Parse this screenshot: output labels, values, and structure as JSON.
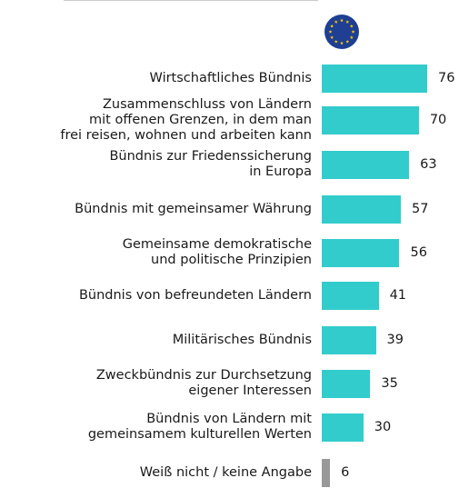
{
  "chart_data": {
    "type": "bar",
    "orientation": "horizontal",
    "categories": [
      [
        "Wirtschaftliches Bündnis"
      ],
      [
        "Zusammenschluss von Ländern",
        "mit offenen Grenzen, in dem man",
        "frei reisen, wohnen und arbeiten kann"
      ],
      [
        "Bündnis zur Friedenssicherung",
        "in Europa"
      ],
      [
        "Bündnis mit gemeinsamer Währung"
      ],
      [
        "Gemeinsame demokratische",
        "und politische Prinzipien"
      ],
      [
        "Bündnis von befreundeten Ländern"
      ],
      [
        "Militärisches Bündnis"
      ],
      [
        "Zweckbündnis zur Durchsetzung",
        "eigener Interessen"
      ],
      [
        "Bündnis von Ländern mit",
        "gemeinsamem kulturellen Werten"
      ],
      [
        "Weiß nicht / keine Angabe"
      ]
    ],
    "values": [
      76,
      70,
      63,
      57,
      56,
      41,
      39,
      35,
      30,
      6
    ],
    "value_labels": [
      "76",
      "70",
      "63",
      "57",
      "56",
      "41",
      "39",
      "35",
      "30",
      "6"
    ],
    "bar_colors": [
      "#33cccc",
      "#33cccc",
      "#33cccc",
      "#33cccc",
      "#33cccc",
      "#33cccc",
      "#33cccc",
      "#33cccc",
      "#33cccc",
      "#999999"
    ],
    "xlim": [
      0,
      100
    ],
    "title": "",
    "xlabel": "",
    "ylabel": "",
    "grid": false,
    "legend": "none"
  },
  "header": {
    "flag_icon": "eu-flag-icon",
    "flag_colors": {
      "background": "#1f3f93",
      "stars": "#ffcc00"
    }
  },
  "colors": {
    "text": "#1a1a1a",
    "rule": "#cccccc"
  }
}
